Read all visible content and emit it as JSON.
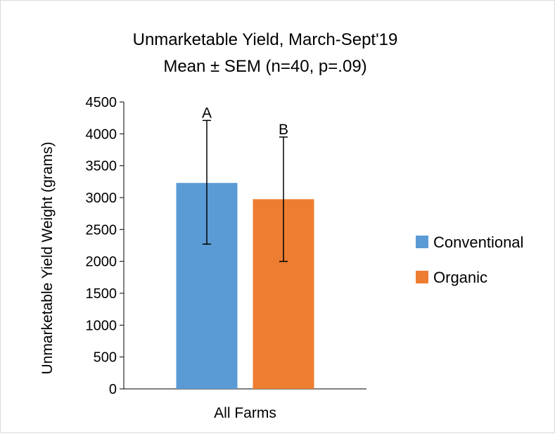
{
  "chart_data": {
    "type": "bar",
    "title": "Unmarketable Yield, March-Sept'19",
    "subtitle": "Mean ± SEM (n=40, p=.09)",
    "ylabel": "Unmarketable Yield Weight (grams)",
    "xlabel": "",
    "categories": [
      "All Farms"
    ],
    "ylim": [
      0,
      4500
    ],
    "yticks": [
      0,
      500,
      1000,
      1500,
      2000,
      2500,
      3000,
      3500,
      4000,
      4500
    ],
    "grid": false,
    "legend_position": "right",
    "series": [
      {
        "name": "Conventional",
        "color": "#5b9bd5",
        "values": [
          3230
        ],
        "error_low": [
          2270
        ],
        "error_high": [
          4210
        ],
        "significance_label": "A"
      },
      {
        "name": "Organic",
        "color": "#ed7d31",
        "values": [
          2975
        ],
        "error_low": [
          2000
        ],
        "error_high": [
          3950
        ],
        "significance_label": "B"
      }
    ]
  }
}
